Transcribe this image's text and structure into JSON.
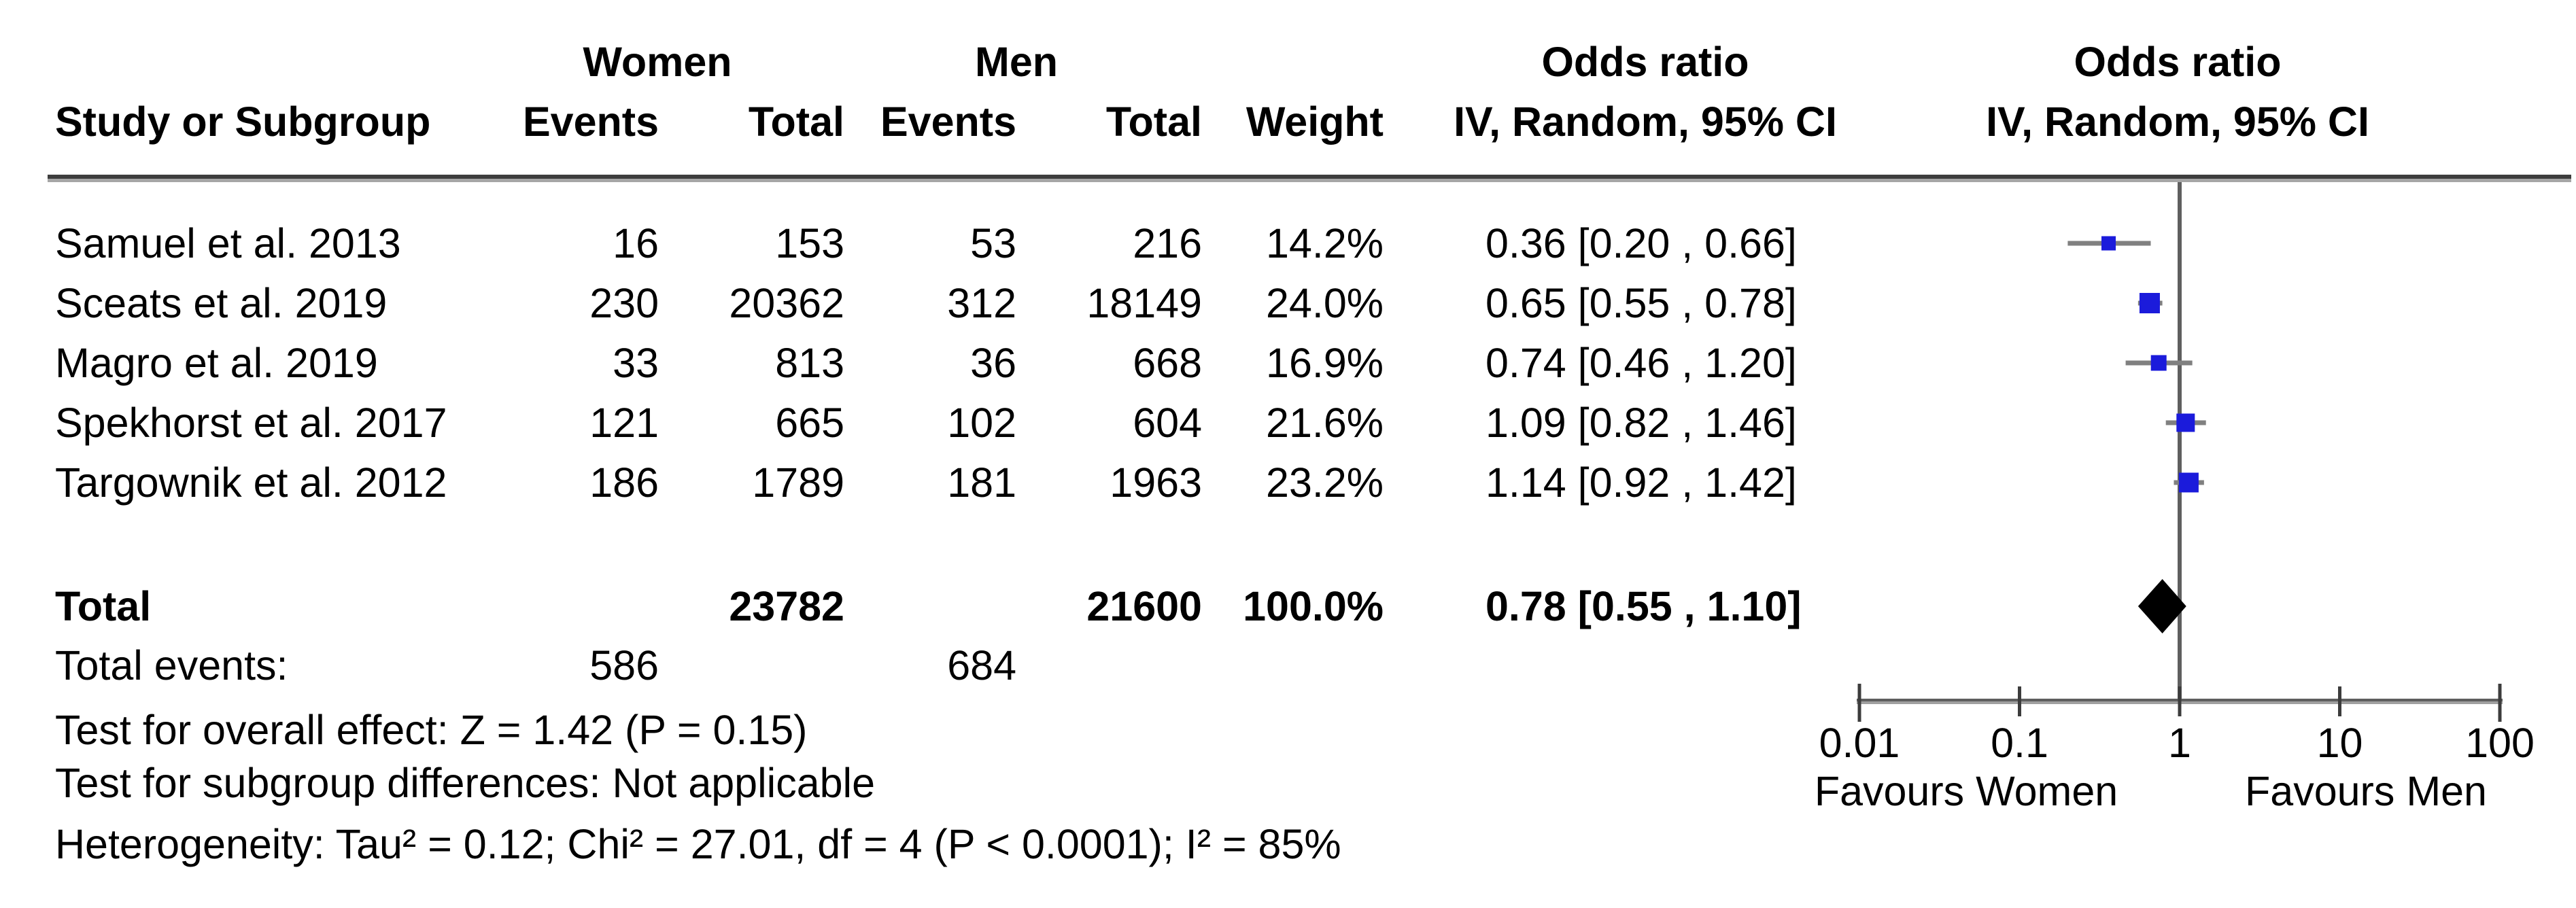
{
  "header": {
    "study_col": "Study or Subgroup",
    "group_women": "Women",
    "group_men": "Men",
    "events_col": "Events",
    "total_col": "Total",
    "weight_col": "Weight",
    "or_text_col": {
      "line1": "Odds ratio",
      "line2": "IV, Random, 95% CI"
    },
    "or_plot_col": {
      "line1": "Odds ratio",
      "line2": "IV, Random, 95% CI"
    }
  },
  "chart_data": {
    "type": "forest",
    "effect_measure": "Odds ratio",
    "model": "IV, Random, 95% CI",
    "x_axis": {
      "scale": "log",
      "range": [
        0.01,
        100
      ],
      "ticks": [
        0.01,
        0.1,
        1,
        10,
        100
      ],
      "tick_labels": [
        "0.01",
        "0.1",
        "1",
        "10",
        "100"
      ],
      "left_label": "Favours Women",
      "right_label": "Favours Men"
    },
    "rows": [
      {
        "study": "Samuel et al. 2013",
        "women_events": "16",
        "women_total": "153",
        "men_events": "53",
        "men_total": "216",
        "weight": "14.2%",
        "weight_value": 14.2,
        "or": 0.36,
        "ci_low": 0.2,
        "ci_high": 0.66,
        "or_label": "0.36 [0.20 , 0.66]"
      },
      {
        "study": "Sceats et al. 2019",
        "women_events": "230",
        "women_total": "20362",
        "men_events": "312",
        "men_total": "18149",
        "weight": "24.0%",
        "weight_value": 24.0,
        "or": 0.65,
        "ci_low": 0.55,
        "ci_high": 0.78,
        "or_label": "0.65 [0.55 , 0.78]"
      },
      {
        "study": "Magro et al. 2019",
        "women_events": "33",
        "women_total": "813",
        "men_events": "36",
        "men_total": "668",
        "weight": "16.9%",
        "weight_value": 16.9,
        "or": 0.74,
        "ci_low": 0.46,
        "ci_high": 1.2,
        "or_label": "0.74 [0.46 , 1.20]"
      },
      {
        "study": "Spekhorst et al. 2017",
        "women_events": "121",
        "women_total": "665",
        "men_events": "102",
        "men_total": "604",
        "weight": "21.6%",
        "weight_value": 21.6,
        "or": 1.09,
        "ci_low": 0.82,
        "ci_high": 1.46,
        "or_label": "1.09 [0.82 , 1.46]"
      },
      {
        "study": "Targownik et al. 2012",
        "women_events": "186",
        "women_total": "1789",
        "men_events": "181",
        "men_total": "1963",
        "weight": "23.2%",
        "weight_value": 23.2,
        "or": 1.14,
        "ci_low": 0.92,
        "ci_high": 1.42,
        "or_label": "1.14 [0.92 , 1.42]"
      }
    ],
    "total": {
      "label": "Total",
      "women_total": "23782",
      "men_total": "21600",
      "weight": "100.0%",
      "or": 0.78,
      "ci_low": 0.55,
      "ci_high": 1.1,
      "or_label": "0.78 [0.55 , 1.10]"
    },
    "total_events": {
      "label": "Total events:",
      "women": "586",
      "men": "684"
    },
    "footnotes": {
      "overall_effect": "Test for overall effect: Z = 1.42 (P = 0.15)",
      "subgroup_differences": "Test for subgroup differences: Not applicable",
      "heterogeneity": "Heterogeneity: Tau² = 0.12; Chi² = 27.01, df = 4 (P < 0.0001); I² = 85%"
    },
    "colors": {
      "marker": "#1b1bdb",
      "ci_line": "#808080",
      "axis": "#8c8c8c",
      "tick": "#3c3c3c",
      "zero_line": "#5f5f5f",
      "diamond": "#000000"
    }
  }
}
